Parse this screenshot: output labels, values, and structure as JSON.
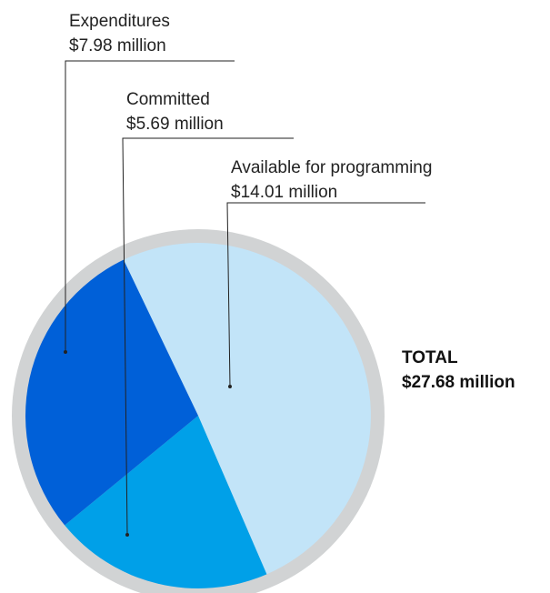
{
  "chart_data": {
    "type": "pie",
    "unit": "million",
    "slices": [
      {
        "label": "Available for programming",
        "value_text": "$14.01 million",
        "value": 14.01,
        "color": "#c2e4f8"
      },
      {
        "label": "Committed",
        "value_text": "$5.69 million",
        "value": 5.69,
        "color": "#00a0e8"
      },
      {
        "label": "Expenditures",
        "value_text": "$7.98 million",
        "value": 7.98,
        "color": "#0060d8"
      }
    ],
    "total": {
      "label": "TOTAL",
      "value_text": "$27.68 million",
      "value": 27.68
    },
    "ring_color": "#d1d3d4",
    "leader_color": "#222222"
  }
}
